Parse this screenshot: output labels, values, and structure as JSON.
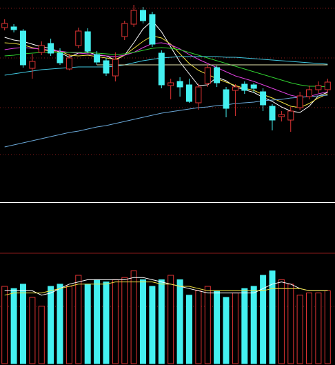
{
  "colors": {
    "background": "#000000",
    "up": "#e03434",
    "down": "#44f0f0",
    "grid": "#8b1a1a",
    "separator": "#ffffff",
    "ma": [
      "#ffffff",
      "#f0e040",
      "#e040e0",
      "#30d030",
      "#40c8e0",
      "#6aa8d8"
    ],
    "vol_ma": [
      "#ffffff",
      "#f0e040"
    ]
  },
  "chart_data": [
    {
      "type": "candlestick",
      "grid": true,
      "ylim": [
        0,
        290
      ],
      "candles": [
        {
          "o": 250,
          "c": 256,
          "h": 262,
          "l": 246
        },
        {
          "o": 251,
          "c": 247,
          "h": 255,
          "l": 243
        },
        {
          "o": 245,
          "c": 196,
          "h": 248,
          "l": 192
        },
        {
          "o": 191,
          "c": 201,
          "h": 212,
          "l": 176
        },
        {
          "o": 214,
          "c": 224,
          "h": 230,
          "l": 210
        },
        {
          "o": 227,
          "c": 213,
          "h": 234,
          "l": 209
        },
        {
          "o": 213,
          "c": 199,
          "h": 220,
          "l": 196
        },
        {
          "o": 190,
          "c": 206,
          "h": 212,
          "l": 188
        },
        {
          "o": 224,
          "c": 245,
          "h": 250,
          "l": 220
        },
        {
          "o": 244,
          "c": 216,
          "h": 249,
          "l": 213
        },
        {
          "o": 211,
          "c": 200,
          "h": 216,
          "l": 196
        },
        {
          "o": 202,
          "c": 184,
          "h": 206,
          "l": 180
        },
        {
          "o": 180,
          "c": 204,
          "h": 214,
          "l": 172
        },
        {
          "o": 237,
          "c": 256,
          "h": 260,
          "l": 232
        },
        {
          "o": 255,
          "c": 275,
          "h": 283,
          "l": 251
        },
        {
          "o": 275,
          "c": 260,
          "h": 280,
          "l": 256
        },
        {
          "o": 269,
          "c": 226,
          "h": 273,
          "l": 222
        },
        {
          "o": 213,
          "c": 167,
          "h": 217,
          "l": 162
        },
        {
          "o": 166,
          "c": 170,
          "h": 176,
          "l": 146
        },
        {
          "o": 172,
          "c": 164,
          "h": 178,
          "l": 150
        },
        {
          "o": 167,
          "c": 143,
          "h": 176,
          "l": 141
        },
        {
          "o": 141,
          "c": 164,
          "h": 169,
          "l": 131
        },
        {
          "o": 169,
          "c": 192,
          "h": 197,
          "l": 164
        },
        {
          "o": 192,
          "c": 170,
          "h": 195,
          "l": 164
        },
        {
          "o": 160,
          "c": 133,
          "h": 164,
          "l": 120
        },
        {
          "o": 159,
          "c": 164,
          "h": 168,
          "l": 122
        },
        {
          "o": 168,
          "c": 159,
          "h": 172,
          "l": 154
        },
        {
          "o": 167,
          "c": 162,
          "h": 170,
          "l": 156
        },
        {
          "o": 157,
          "c": 138,
          "h": 162,
          "l": 129
        },
        {
          "o": 136,
          "c": 116,
          "h": 139,
          "l": 101
        },
        {
          "o": 121,
          "c": 124,
          "h": 129,
          "l": 114
        },
        {
          "o": 116,
          "c": 129,
          "h": 135,
          "l": 99
        },
        {
          "o": 134,
          "c": 151,
          "h": 157,
          "l": 131
        },
        {
          "o": 150,
          "c": 160,
          "h": 166,
          "l": 146
        },
        {
          "o": 160,
          "c": 166,
          "h": 172,
          "l": 155
        },
        {
          "o": 160,
          "c": 171,
          "h": 176,
          "l": 156
        }
      ],
      "ma": [
        [
          236,
          232,
          230,
          226,
          222,
          220,
          214,
          207,
          213,
          215,
          210,
          209,
          203,
          210,
          228,
          248,
          260,
          244,
          222,
          200,
          183,
          166,
          167,
          178,
          173,
          164,
          160,
          156,
          149,
          143,
          135,
          129,
          127,
          136,
          151,
          156
        ],
        [
          228,
          227,
          225,
          221,
          218,
          216,
          216,
          210,
          209,
          210,
          208,
          206,
          204,
          210,
          220,
          230,
          238,
          235,
          226,
          212,
          198,
          188,
          182,
          176,
          171,
          166,
          162,
          159,
          153,
          148,
          142,
          136,
          134,
          140,
          148,
          154
        ],
        [
          218,
          220,
          221,
          220,
          219,
          217,
          216,
          214,
          213,
          212,
          211,
          209,
          208,
          210,
          214,
          221,
          227,
          228,
          225,
          219,
          211,
          204,
          198,
          192,
          186,
          180,
          176,
          172,
          167,
          162,
          157,
          152,
          149,
          150,
          154,
          157
        ],
        [
          209,
          210,
          212,
          213,
          214,
          214,
          214,
          214,
          214,
          214,
          213,
          212,
          211,
          212,
          214,
          217,
          220,
          221,
          220,
          218,
          214,
          210,
          206,
          202,
          198,
          194,
          190,
          186,
          182,
          178,
          174,
          170,
          167,
          165,
          165,
          164
        ],
        [
          181,
          183,
          185,
          187,
          189,
          190,
          191,
          192,
          193,
          193,
          193,
          193,
          194,
          196,
          199,
          202,
          204,
          206,
          207,
          208,
          208,
          208,
          208,
          208,
          207,
          207,
          206,
          205,
          204,
          203,
          202,
          201,
          200,
          199,
          198,
          197
        ],
        [
          77,
          80,
          83,
          86,
          89,
          92,
          95,
          98,
          100,
          103,
          106,
          108,
          111,
          114,
          117,
          120,
          123,
          126,
          128,
          130,
          132,
          134,
          135,
          137,
          138,
          140,
          141,
          142,
          144,
          145,
          146,
          148,
          149,
          150,
          151,
          152
        ]
      ],
      "ma_extra": [
        [
          196,
          196
        ]
      ]
    },
    {
      "type": "bar",
      "grid": true,
      "ylim": [
        0,
        100
      ],
      "volume": [
        70,
        68,
        72,
        60,
        52,
        70,
        72,
        70,
        80,
        72,
        76,
        74,
        76,
        78,
        84,
        76,
        70,
        76,
        80,
        76,
        62,
        66,
        70,
        66,
        60,
        64,
        68,
        70,
        80,
        84,
        76,
        72,
        62,
        64,
        64,
        66
      ],
      "vol_ma": [
        [
          66,
          66,
          66,
          66,
          62,
          64,
          68,
          72,
          74,
          76,
          76,
          76,
          76,
          76,
          78,
          78,
          76,
          74,
          72,
          70,
          68,
          66,
          64,
          64,
          64,
          64,
          64,
          64,
          68,
          72,
          74,
          72,
          68,
          66,
          66,
          66
        ],
        [
          62,
          64,
          64,
          64,
          64,
          66,
          68,
          70,
          72,
          72,
          72,
          72,
          74,
          74,
          74,
          74,
          74,
          72,
          72,
          70,
          70,
          68,
          66,
          66,
          66,
          66,
          66,
          66,
          66,
          68,
          68,
          68,
          68,
          66,
          66,
          66
        ]
      ]
    }
  ]
}
